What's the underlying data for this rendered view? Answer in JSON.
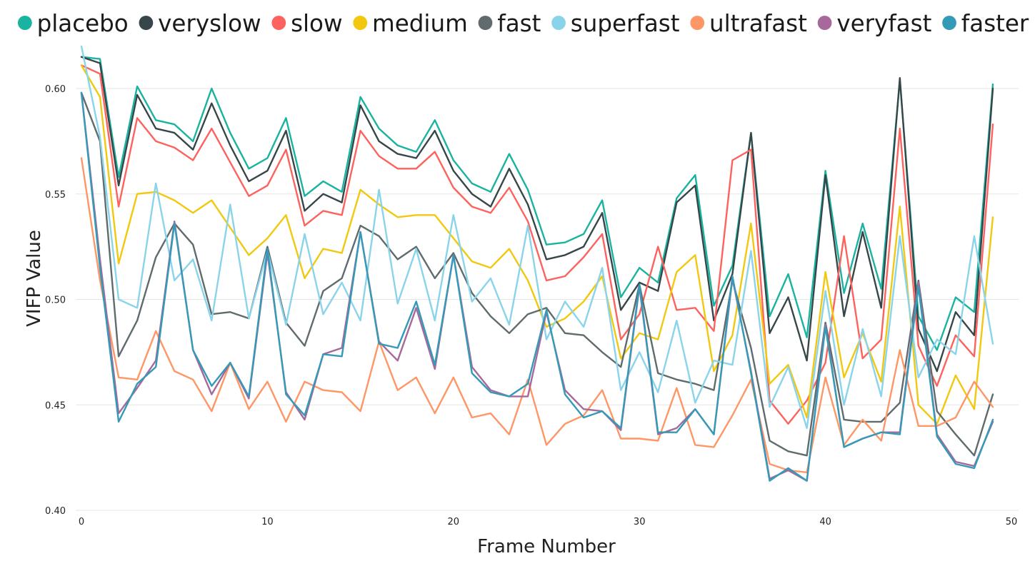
{
  "chart_data": {
    "type": "line",
    "xlabel": "Frame Number",
    "ylabel": "VIFP Value",
    "xlim": [
      0,
      50
    ],
    "ylim": [
      0.4,
      0.62
    ],
    "xticks": [
      0,
      10,
      20,
      30,
      40,
      50
    ],
    "yticks": [
      0.4,
      0.45,
      0.5,
      0.55,
      0.6
    ],
    "ytick_labels": [
      "0.40",
      "0.45",
      "0.50",
      "0.55",
      "0.60"
    ],
    "grid": "horizontal",
    "legend_position": "top",
    "x": [
      0,
      1,
      2,
      3,
      4,
      5,
      6,
      7,
      8,
      9,
      10,
      11,
      12,
      13,
      14,
      15,
      16,
      17,
      18,
      19,
      20,
      21,
      22,
      23,
      24,
      25,
      26,
      27,
      28,
      29,
      30,
      31,
      32,
      33,
      34,
      35,
      36,
      37,
      38,
      39,
      40,
      41,
      42,
      43,
      44,
      45,
      46,
      47,
      48,
      49
    ],
    "series": [
      {
        "name": "placebo",
        "color": "#1ab39f",
        "values": [
          0.615,
          0.614,
          0.558,
          0.601,
          0.585,
          0.583,
          0.575,
          0.6,
          0.579,
          0.562,
          0.567,
          0.586,
          0.549,
          0.556,
          0.551,
          0.596,
          0.581,
          0.573,
          0.57,
          0.585,
          0.566,
          0.555,
          0.551,
          0.569,
          0.552,
          0.526,
          0.527,
          0.531,
          0.547,
          0.501,
          0.515,
          0.508,
          0.548,
          0.559,
          0.497,
          0.516,
          0.579,
          0.492,
          0.512,
          0.482,
          0.561,
          0.503,
          0.536,
          0.505,
          0.604,
          0.492,
          0.476,
          0.501,
          0.494,
          0.602
        ]
      },
      {
        "name": "veryslow",
        "color": "#374649",
        "values": [
          0.615,
          0.612,
          0.554,
          0.597,
          0.581,
          0.579,
          0.571,
          0.593,
          0.573,
          0.556,
          0.561,
          0.58,
          0.542,
          0.55,
          0.546,
          0.592,
          0.575,
          0.569,
          0.567,
          0.58,
          0.561,
          0.55,
          0.544,
          0.562,
          0.545,
          0.519,
          0.521,
          0.525,
          0.541,
          0.495,
          0.508,
          0.504,
          0.546,
          0.554,
          0.49,
          0.512,
          0.579,
          0.484,
          0.501,
          0.471,
          0.559,
          0.492,
          0.532,
          0.496,
          0.605,
          0.486,
          0.466,
          0.494,
          0.483,
          0.6
        ]
      },
      {
        "name": "slow",
        "color": "#fd625e",
        "values": [
          0.611,
          0.607,
          0.544,
          0.586,
          0.575,
          0.572,
          0.566,
          0.581,
          0.565,
          0.549,
          0.554,
          0.571,
          0.535,
          0.542,
          0.54,
          0.58,
          0.568,
          0.562,
          0.562,
          0.57,
          0.553,
          0.544,
          0.541,
          0.553,
          0.537,
          0.509,
          0.511,
          0.52,
          0.531,
          0.481,
          0.493,
          0.525,
          0.495,
          0.496,
          0.485,
          0.566,
          0.571,
          0.452,
          0.441,
          0.452,
          0.47,
          0.53,
          0.472,
          0.481,
          0.581,
          0.478,
          0.459,
          0.483,
          0.473,
          0.583
        ]
      },
      {
        "name": "medium",
        "color": "#f2c80f",
        "values": [
          0.611,
          0.596,
          0.517,
          0.55,
          0.551,
          0.547,
          0.541,
          0.547,
          0.534,
          0.521,
          0.529,
          0.54,
          0.51,
          0.524,
          0.522,
          0.552,
          0.545,
          0.539,
          0.54,
          0.54,
          0.529,
          0.518,
          0.515,
          0.524,
          0.509,
          0.487,
          0.491,
          0.499,
          0.511,
          0.472,
          0.484,
          0.481,
          0.513,
          0.521,
          0.466,
          0.483,
          0.536,
          0.46,
          0.469,
          0.444,
          0.513,
          0.463,
          0.484,
          0.461,
          0.544,
          0.45,
          0.441,
          0.464,
          0.448,
          0.539
        ]
      },
      {
        "name": "fast",
        "color": "#5f6b6d",
        "values": [
          0.598,
          0.575,
          0.473,
          0.49,
          0.52,
          0.536,
          0.526,
          0.493,
          0.494,
          0.491,
          0.525,
          0.489,
          0.478,
          0.504,
          0.51,
          0.535,
          0.53,
          0.519,
          0.525,
          0.51,
          0.522,
          0.503,
          0.492,
          0.484,
          0.493,
          0.496,
          0.484,
          0.483,
          0.475,
          0.468,
          0.507,
          0.465,
          0.462,
          0.46,
          0.457,
          0.509,
          0.477,
          0.433,
          0.428,
          0.426,
          0.489,
          0.443,
          0.442,
          0.442,
          0.451,
          0.509,
          0.447,
          0.436,
          0.426,
          0.455
        ]
      },
      {
        "name": "superfast",
        "color": "#8ad4eb",
        "values": [
          0.62,
          0.577,
          0.5,
          0.496,
          0.555,
          0.509,
          0.519,
          0.49,
          0.545,
          0.491,
          0.523,
          0.488,
          0.531,
          0.493,
          0.508,
          0.49,
          0.552,
          0.498,
          0.524,
          0.49,
          0.54,
          0.499,
          0.51,
          0.488,
          0.535,
          0.481,
          0.499,
          0.487,
          0.515,
          0.457,
          0.475,
          0.456,
          0.49,
          0.451,
          0.471,
          0.469,
          0.523,
          0.449,
          0.468,
          0.439,
          0.504,
          0.45,
          0.486,
          0.454,
          0.53,
          0.463,
          0.481,
          0.474,
          0.53,
          0.479
        ]
      },
      {
        "name": "ultrafast",
        "color": "#fe9666",
        "values": [
          0.567,
          0.509,
          0.463,
          0.462,
          0.485,
          0.466,
          0.462,
          0.447,
          0.47,
          0.448,
          0.461,
          0.442,
          0.461,
          0.457,
          0.456,
          0.447,
          0.48,
          0.457,
          0.463,
          0.446,
          0.463,
          0.444,
          0.446,
          0.436,
          0.462,
          0.431,
          0.441,
          0.445,
          0.457,
          0.434,
          0.434,
          0.433,
          0.458,
          0.431,
          0.43,
          0.445,
          0.462,
          0.422,
          0.419,
          0.418,
          0.463,
          0.431,
          0.443,
          0.433,
          0.476,
          0.44,
          0.44,
          0.444,
          0.461,
          0.449
        ]
      },
      {
        "name": "veryfast",
        "color": "#a66999",
        "values": [
          0.598,
          0.519,
          0.446,
          0.458,
          0.471,
          0.537,
          0.476,
          0.455,
          0.47,
          0.453,
          0.522,
          0.456,
          0.443,
          0.474,
          0.477,
          0.532,
          0.48,
          0.471,
          0.496,
          0.467,
          0.521,
          0.468,
          0.457,
          0.454,
          0.454,
          0.494,
          0.457,
          0.448,
          0.447,
          0.438,
          0.506,
          0.436,
          0.439,
          0.448,
          0.436,
          0.51,
          0.466,
          0.415,
          0.419,
          0.414,
          0.488,
          0.43,
          0.434,
          0.437,
          0.437,
          0.508,
          0.436,
          0.423,
          0.421,
          0.442
        ]
      },
      {
        "name": "faster",
        "color": "#3599b8",
        "values": [
          0.598,
          0.515,
          0.442,
          0.46,
          0.468,
          0.536,
          0.476,
          0.459,
          0.47,
          0.454,
          0.524,
          0.455,
          0.445,
          0.474,
          0.473,
          0.532,
          0.479,
          0.477,
          0.499,
          0.469,
          0.521,
          0.465,
          0.456,
          0.454,
          0.46,
          0.495,
          0.455,
          0.444,
          0.447,
          0.439,
          0.507,
          0.437,
          0.437,
          0.448,
          0.436,
          0.511,
          0.465,
          0.414,
          0.42,
          0.414,
          0.487,
          0.43,
          0.434,
          0.437,
          0.436,
          0.506,
          0.435,
          0.422,
          0.42,
          0.443
        ]
      }
    ]
  }
}
